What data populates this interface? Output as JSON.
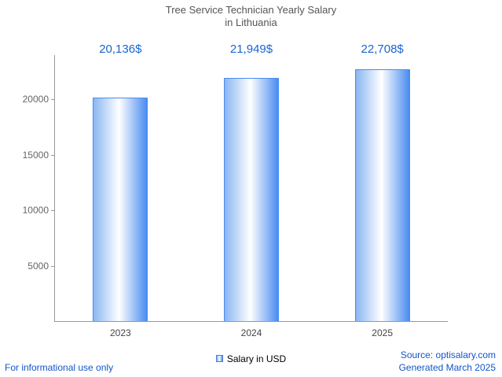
{
  "title": {
    "line1": "Tree Service Technician Yearly Salary",
    "line2": "in Lithuania"
  },
  "chart_data": {
    "type": "bar",
    "categories": [
      "2023",
      "2024",
      "2025"
    ],
    "values": [
      20136,
      21949,
      22708
    ],
    "value_labels": [
      "20,136$",
      "21,949$",
      "22,708$"
    ],
    "yticks": [
      5000,
      10000,
      15000,
      20000
    ],
    "ylim": [
      0,
      23840
    ],
    "title": "Tree Service Technician Yearly Salary in Lithuania",
    "xlabel": "",
    "ylabel": "",
    "legend_position": "bottom",
    "grid": false,
    "series_name": "Salary in USD"
  },
  "legend": {
    "label": "Salary in USD"
  },
  "footer": {
    "left": "For informational use only",
    "source": "Source: optisalary.com",
    "generated": "Generated March 2025"
  },
  "colors": {
    "title_text": "#555555",
    "value_label_text": "#1a64d2",
    "axis": "#999999",
    "tick_text": "#666666",
    "link_blue": "#1155cc",
    "bar_edge": "#4a8cf0",
    "bar_edge_light": "#8ab6f2",
    "bar_mid": "#ffffff"
  }
}
